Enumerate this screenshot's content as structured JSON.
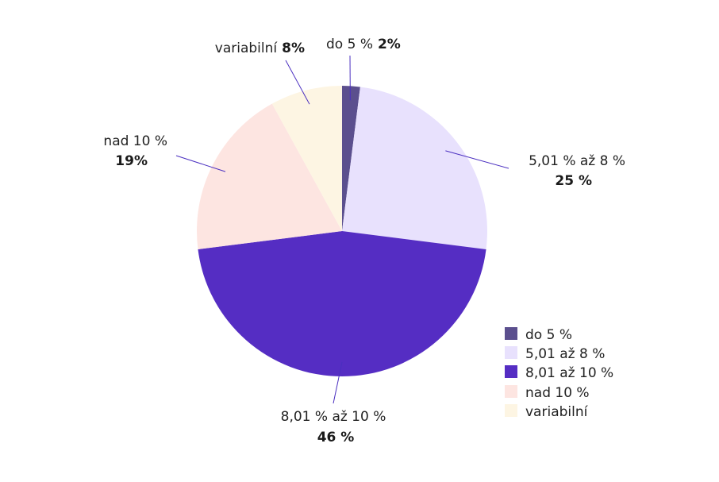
{
  "chart_data": {
    "type": "pie",
    "categories": [
      "do 5 %",
      "5,01 % až 8 %",
      "8,01 % až 10 %",
      "nad 10 %",
      "variabilní"
    ],
    "values": [
      2,
      25,
      46,
      19,
      8
    ],
    "value_labels": [
      "2%",
      "25 %",
      "46 %",
      "19%",
      "8%"
    ],
    "colors": [
      "#5b4f8e",
      "#e8e1fd",
      "#552dc3",
      "#fde5e1",
      "#fdf5e3"
    ],
    "legend": {
      "entries": [
        "do 5 %",
        "5,01 až 8 %",
        "8,01 až 10 %",
        "nad 10 %",
        "variabilní"
      ],
      "placement": "bottom-right"
    },
    "start_angle_deg": 0,
    "direction": "clockwise"
  }
}
